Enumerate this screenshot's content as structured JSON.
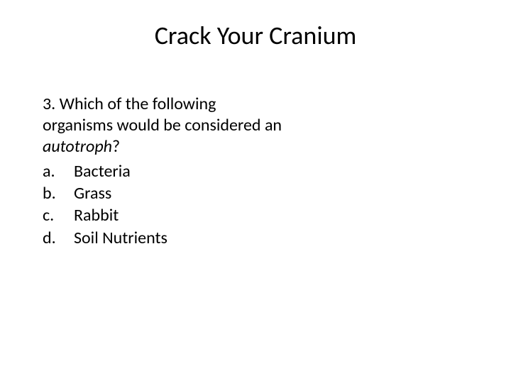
{
  "slide": {
    "title": "Crack Your Cranium",
    "title_fontsize": 36,
    "background_color": "#ffffff",
    "text_color": "#000000",
    "question": {
      "number": "3.",
      "text_before_italic": "Which of the following organisms would be considered an ",
      "italic_word": "autotroph",
      "text_after_italic": "?",
      "fontsize": 24,
      "choices": [
        {
          "letter": "a.",
          "text": "Bacteria"
        },
        {
          "letter": "b.",
          "text": "Grass"
        },
        {
          "letter": "c.",
          "text": "Rabbit"
        },
        {
          "letter": "d.",
          "text": "Soil Nutrients"
        }
      ]
    }
  }
}
